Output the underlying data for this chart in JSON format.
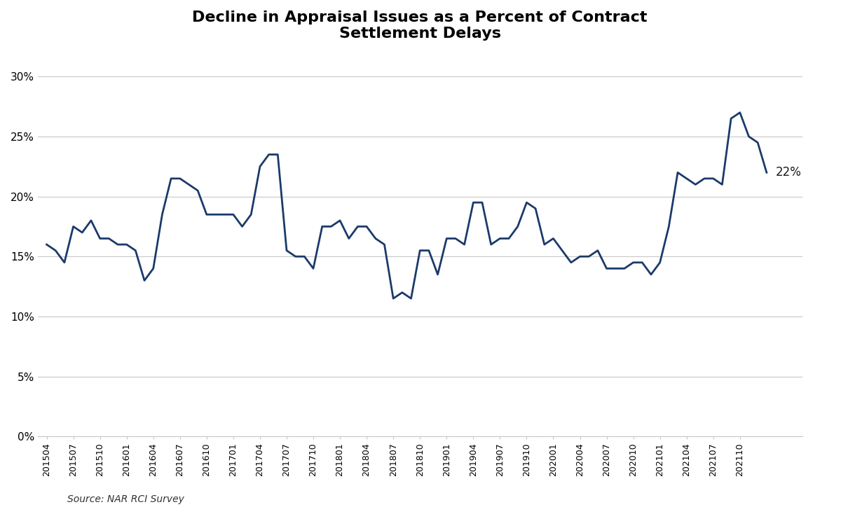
{
  "title": "Decline in Appraisal Issues as a Percent of Contract\nSettlement Delays",
  "source_text": "Source: NAR RCI Survey",
  "line_color": "#1b3a6b",
  "line_width": 2.0,
  "background_color": "#ffffff",
  "annotation_label": "22%",
  "ylim": [
    0,
    0.32
  ],
  "yticks": [
    0.0,
    0.05,
    0.1,
    0.15,
    0.2,
    0.25,
    0.3
  ],
  "ytick_labels": [
    "0%",
    "5%",
    "10%",
    "15%",
    "20%",
    "25%",
    "30%"
  ],
  "x_labels_positions_and_text": {
    "labels": [
      "201504",
      "201507",
      "201510",
      "201601",
      "201604",
      "201607",
      "201610",
      "201701",
      "201704",
      "201707",
      "201710",
      "201801",
      "201804",
      "201807",
      "201810",
      "201901",
      "201904",
      "201907",
      "201910",
      "202001",
      "202004",
      "202007",
      "202010",
      "202101",
      "202104",
      "202107",
      "202110"
    ],
    "step": 3
  },
  "values": [
    0.16,
    0.155,
    0.145,
    0.175,
    0.17,
    0.18,
    0.165,
    0.165,
    0.16,
    0.16,
    0.155,
    0.13,
    0.14,
    0.185,
    0.215,
    0.215,
    0.21,
    0.205,
    0.185,
    0.185,
    0.185,
    0.185,
    0.175,
    0.185,
    0.225,
    0.235,
    0.235,
    0.155,
    0.15,
    0.15,
    0.14,
    0.175,
    0.175,
    0.18,
    0.165,
    0.175,
    0.175,
    0.165,
    0.16,
    0.115,
    0.12,
    0.115,
    0.155,
    0.155,
    0.135,
    0.165,
    0.165,
    0.16,
    0.195,
    0.195,
    0.16,
    0.165,
    0.165,
    0.175,
    0.195,
    0.19,
    0.16,
    0.165,
    0.155,
    0.145,
    0.15,
    0.15,
    0.155,
    0.14,
    0.14,
    0.14,
    0.145,
    0.145,
    0.135,
    0.145,
    0.175,
    0.22,
    0.215,
    0.21,
    0.215,
    0.215,
    0.21,
    0.265,
    0.27,
    0.25,
    0.245,
    0.22
  ]
}
